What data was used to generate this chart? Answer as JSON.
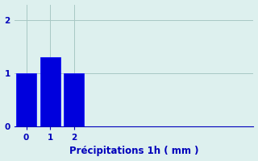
{
  "categories": [
    0,
    1,
    2
  ],
  "values": [
    1.0,
    1.3,
    1.0
  ],
  "bar_color": "#0000dd",
  "background_color": "#ddf0ee",
  "grid_color": "#a8c8c4",
  "text_color": "#0000bb",
  "xlabel": "Précipitations 1h ( mm )",
  "ylim": [
    0,
    2.3
  ],
  "yticks": [
    0,
    1,
    2
  ],
  "xticks": [
    0,
    1,
    2
  ],
  "xlim": [
    -0.5,
    9.5
  ],
  "bar_width": 0.85,
  "xlabel_fontsize": 8.5,
  "tick_fontsize": 7.5,
  "figsize": [
    3.2,
    2.0
  ],
  "dpi": 100
}
